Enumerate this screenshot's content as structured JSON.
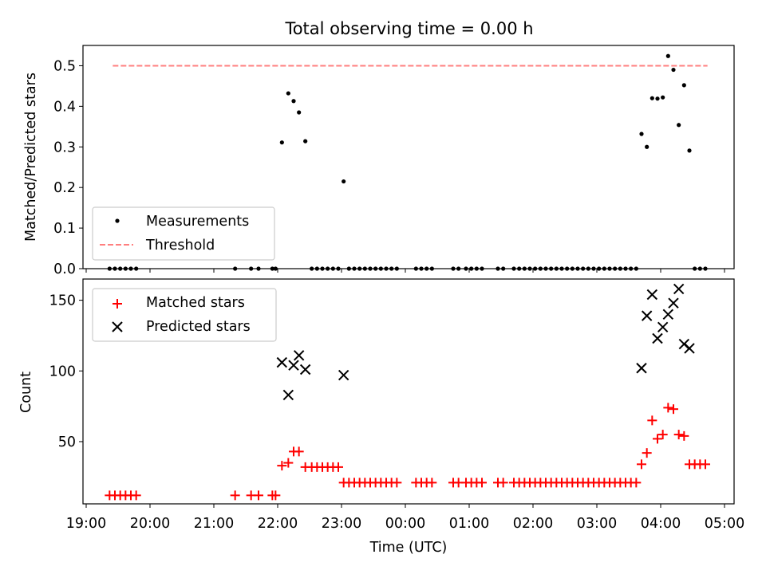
{
  "chart_data": {
    "title": "Total observing time = 0.00 h",
    "xlabel": "Time (UTC)",
    "x_unit": "hours UTC (continuous across midnight; 24:00 = 00:00)",
    "x_range": [
      "18:57",
      "05:09"
    ],
    "x_ticks": [
      "19:00",
      "20:00",
      "21:00",
      "22:00",
      "23:00",
      "00:00",
      "01:00",
      "02:00",
      "03:00",
      "04:00",
      "05:00"
    ],
    "panels": [
      {
        "type": "scatter",
        "ylabel": "Matched/Predicted stars",
        "ylim": [
          0,
          0.55
        ],
        "yticks": [
          "0.0",
          "0.1",
          "0.2",
          "0.3",
          "0.4",
          "0.5"
        ],
        "legend": {
          "position": "lower-left",
          "entries": [
            "Measurements",
            "Threshold"
          ]
        },
        "series": [
          {
            "name": "Measurements",
            "marker": "dot",
            "color": "#000000",
            "points": [
              [
                "19:22",
                0
              ],
              [
                "19:27",
                0
              ],
              [
                "19:32",
                0
              ],
              [
                "19:37",
                0
              ],
              [
                "19:42",
                0
              ],
              [
                "19:47",
                0
              ],
              [
                "21:20",
                0
              ],
              [
                "21:35",
                0
              ],
              [
                "21:42",
                0
              ],
              [
                "21:55",
                0
              ],
              [
                "21:58",
                0
              ],
              [
                "22:04",
                0.311
              ],
              [
                "22:10",
                0.432
              ],
              [
                "22:15",
                0.413
              ],
              [
                "22:20",
                0.385
              ],
              [
                "22:26",
                0.314
              ],
              [
                "22:32",
                0
              ],
              [
                "22:37",
                0
              ],
              [
                "22:42",
                0
              ],
              [
                "22:47",
                0
              ],
              [
                "22:52",
                0
              ],
              [
                "22:57",
                0
              ],
              [
                "23:02",
                0.215
              ],
              [
                "23:07",
                0
              ],
              [
                "23:12",
                0
              ],
              [
                "23:17",
                0
              ],
              [
                "23:22",
                0
              ],
              [
                "23:27",
                0
              ],
              [
                "23:32",
                0
              ],
              [
                "23:37",
                0
              ],
              [
                "23:42",
                0
              ],
              [
                "23:47",
                0
              ],
              [
                "23:52",
                0
              ],
              [
                "00:10",
                0
              ],
              [
                "00:15",
                0
              ],
              [
                "00:20",
                0
              ],
              [
                "00:25",
                0
              ],
              [
                "00:45",
                0
              ],
              [
                "00:50",
                0
              ],
              [
                "00:57",
                0
              ],
              [
                "01:02",
                0
              ],
              [
                "01:07",
                0
              ],
              [
                "01:12",
                0
              ],
              [
                "01:27",
                0
              ],
              [
                "01:32",
                0
              ],
              [
                "01:42",
                0
              ],
              [
                "01:47",
                0
              ],
              [
                "01:52",
                0
              ],
              [
                "01:57",
                0
              ],
              [
                "02:02",
                0
              ],
              [
                "02:07",
                0
              ],
              [
                "02:12",
                0
              ],
              [
                "02:17",
                0
              ],
              [
                "02:22",
                0
              ],
              [
                "02:27",
                0
              ],
              [
                "02:32",
                0
              ],
              [
                "02:37",
                0
              ],
              [
                "02:42",
                0
              ],
              [
                "02:47",
                0
              ],
              [
                "02:52",
                0
              ],
              [
                "02:57",
                0
              ],
              [
                "03:02",
                0
              ],
              [
                "03:07",
                0
              ],
              [
                "03:12",
                0
              ],
              [
                "03:17",
                0
              ],
              [
                "03:22",
                0
              ],
              [
                "03:27",
                0
              ],
              [
                "03:32",
                0
              ],
              [
                "03:37",
                0
              ],
              [
                "03:42",
                0.332
              ],
              [
                "03:47",
                0.3
              ],
              [
                "03:52",
                0.42
              ],
              [
                "03:57",
                0.419
              ],
              [
                "04:02",
                0.422
              ],
              [
                "04:07",
                0.524
              ],
              [
                "04:12",
                0.49
              ],
              [
                "04:17",
                0.354
              ],
              [
                "04:22",
                0.452
              ],
              [
                "04:27",
                0.291
              ],
              [
                "04:32",
                0
              ],
              [
                "04:37",
                0
              ],
              [
                "04:42",
                0
              ]
            ]
          },
          {
            "name": "Threshold",
            "style": "dashed-line",
            "color": "#ff7f7f",
            "y": 0.5,
            "x_range": [
              "19:25",
              "04:44"
            ]
          }
        ]
      },
      {
        "type": "scatter",
        "ylabel": "Count",
        "ylim": [
          6,
          165
        ],
        "yticks": [
          "50",
          "100",
          "150"
        ],
        "legend": {
          "position": "upper-left",
          "entries": [
            "Matched stars",
            "Predicted stars"
          ]
        },
        "series": [
          {
            "name": "Matched stars",
            "marker": "plus",
            "color": "#ff0000",
            "points": [
              [
                "19:22",
                12
              ],
              [
                "19:27",
                12
              ],
              [
                "19:32",
                12
              ],
              [
                "19:37",
                12
              ],
              [
                "19:42",
                12
              ],
              [
                "19:47",
                12
              ],
              [
                "21:20",
                12
              ],
              [
                "21:35",
                12
              ],
              [
                "21:42",
                12
              ],
              [
                "21:55",
                12
              ],
              [
                "21:58",
                12
              ],
              [
                "22:04",
                33
              ],
              [
                "22:10",
                35
              ],
              [
                "22:15",
                43
              ],
              [
                "22:20",
                43
              ],
              [
                "22:26",
                32
              ],
              [
                "22:32",
                32
              ],
              [
                "22:37",
                32
              ],
              [
                "22:42",
                32
              ],
              [
                "22:47",
                32
              ],
              [
                "22:52",
                32
              ],
              [
                "22:57",
                32
              ],
              [
                "23:02",
                21
              ],
              [
                "23:07",
                21
              ],
              [
                "23:12",
                21
              ],
              [
                "23:17",
                21
              ],
              [
                "23:22",
                21
              ],
              [
                "23:27",
                21
              ],
              [
                "23:32",
                21
              ],
              [
                "23:37",
                21
              ],
              [
                "23:42",
                21
              ],
              [
                "23:47",
                21
              ],
              [
                "23:52",
                21
              ],
              [
                "00:10",
                21
              ],
              [
                "00:15",
                21
              ],
              [
                "00:20",
                21
              ],
              [
                "00:25",
                21
              ],
              [
                "00:45",
                21
              ],
              [
                "00:50",
                21
              ],
              [
                "00:57",
                21
              ],
              [
                "01:02",
                21
              ],
              [
                "01:07",
                21
              ],
              [
                "01:12",
                21
              ],
              [
                "01:27",
                21
              ],
              [
                "01:32",
                21
              ],
              [
                "01:42",
                21
              ],
              [
                "01:47",
                21
              ],
              [
                "01:52",
                21
              ],
              [
                "01:57",
                21
              ],
              [
                "02:02",
                21
              ],
              [
                "02:07",
                21
              ],
              [
                "02:12",
                21
              ],
              [
                "02:17",
                21
              ],
              [
                "02:22",
                21
              ],
              [
                "02:27",
                21
              ],
              [
                "02:32",
                21
              ],
              [
                "02:37",
                21
              ],
              [
                "02:42",
                21
              ],
              [
                "02:47",
                21
              ],
              [
                "02:52",
                21
              ],
              [
                "02:57",
                21
              ],
              [
                "03:02",
                21
              ],
              [
                "03:07",
                21
              ],
              [
                "03:12",
                21
              ],
              [
                "03:17",
                21
              ],
              [
                "03:22",
                21
              ],
              [
                "03:27",
                21
              ],
              [
                "03:32",
                21
              ],
              [
                "03:37",
                21
              ],
              [
                "03:42",
                34
              ],
              [
                "03:47",
                42
              ],
              [
                "03:52",
                65
              ],
              [
                "03:57",
                52
              ],
              [
                "04:02",
                55
              ],
              [
                "04:07",
                74
              ],
              [
                "04:12",
                73
              ],
              [
                "04:17",
                55
              ],
              [
                "04:22",
                54
              ],
              [
                "04:27",
                34
              ],
              [
                "04:32",
                34
              ],
              [
                "04:37",
                34
              ],
              [
                "04:42",
                34
              ]
            ]
          },
          {
            "name": "Predicted stars",
            "marker": "x",
            "color": "#000000",
            "points": [
              [
                "22:04",
                106
              ],
              [
                "22:10",
                83
              ],
              [
                "22:15",
                104
              ],
              [
                "22:20",
                111
              ],
              [
                "22:26",
                101
              ],
              [
                "23:02",
                97
              ],
              [
                "03:42",
                102
              ],
              [
                "03:47",
                139
              ],
              [
                "03:52",
                154
              ],
              [
                "03:57",
                123
              ],
              [
                "04:02",
                131
              ],
              [
                "04:07",
                140
              ],
              [
                "04:12",
                148
              ],
              [
                "04:17",
                158
              ],
              [
                "04:22",
                119
              ],
              [
                "04:27",
                116
              ]
            ]
          }
        ]
      }
    ]
  }
}
